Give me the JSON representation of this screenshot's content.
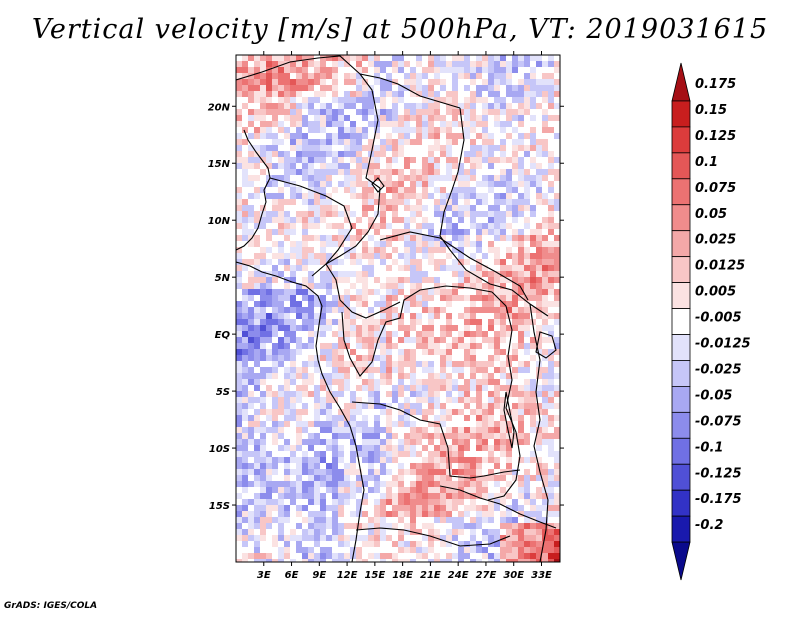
{
  "title": "Vertical velocity [m/s] at 500hPa, VT: 2019031615",
  "credit": "GrADS: IGES/COLA",
  "chart_data": {
    "type": "heatmap",
    "title": "Vertical velocity [m/s] at 500hPa, VT: 2019031615",
    "variable": "Vertical velocity",
    "units": "m/s",
    "level": "500hPa",
    "valid_time": "2019031615",
    "xlim": [
      0,
      35
    ],
    "ylim": [
      -20,
      24.5
    ],
    "x_ticks": [
      {
        "value": 3,
        "label": "3E"
      },
      {
        "value": 6,
        "label": "6E"
      },
      {
        "value": 9,
        "label": "9E"
      },
      {
        "value": 12,
        "label": "12E"
      },
      {
        "value": 15,
        "label": "15E"
      },
      {
        "value": 18,
        "label": "18E"
      },
      {
        "value": 21,
        "label": "21E"
      },
      {
        "value": 24,
        "label": "24E"
      },
      {
        "value": 27,
        "label": "27E"
      },
      {
        "value": 30,
        "label": "30E"
      },
      {
        "value": 33,
        "label": "33E"
      }
    ],
    "y_ticks": [
      {
        "value": 20,
        "label": "20N"
      },
      {
        "value": 15,
        "label": "15N"
      },
      {
        "value": 10,
        "label": "10N"
      },
      {
        "value": 5,
        "label": "5N"
      },
      {
        "value": 0,
        "label": "EQ"
      },
      {
        "value": -5,
        "label": "5S"
      },
      {
        "value": -10,
        "label": "10S"
      },
      {
        "value": -15,
        "label": "15S"
      }
    ],
    "colorbar": {
      "labels": [
        "0.175",
        "0.15",
        "0.125",
        "0.1",
        "0.075",
        "0.05",
        "0.025",
        "0.0125",
        "0.005",
        "-0.005",
        "-0.0125",
        "-0.025",
        "-0.05",
        "-0.075",
        "-0.1",
        "-0.125",
        "-0.175",
        "-0.2"
      ],
      "colors": [
        "#a50f15",
        "#c81e1e",
        "#dc3c3c",
        "#e45757",
        "#ec7272",
        "#f08c8c",
        "#f4a8a8",
        "#f8c6c6",
        "#fbe2e2",
        "#ffffff",
        "#e2e2fb",
        "#c6c6f8",
        "#a8a8f2",
        "#8c8cec",
        "#7070e4",
        "#5050d6",
        "#3232c6",
        "#1919ad",
        "#0a0a8c"
      ]
    }
  }
}
